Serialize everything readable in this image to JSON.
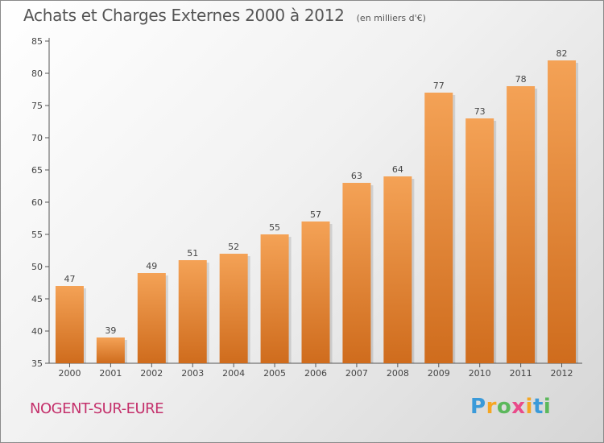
{
  "chart_data": {
    "type": "bar",
    "title": "Achats et Charges Externes 2000 à 2012",
    "subtitle": "(en milliers d'€)",
    "categories": [
      "2000",
      "2001",
      "2002",
      "2003",
      "2004",
      "2005",
      "2006",
      "2007",
      "2008",
      "2009",
      "2010",
      "2011",
      "2012"
    ],
    "values": [
      47,
      39,
      49,
      51,
      52,
      55,
      57,
      63,
      64,
      77,
      73,
      78,
      82
    ],
    "ylim": [
      35,
      85
    ],
    "yticks": [
      35,
      40,
      45,
      50,
      55,
      60,
      65,
      70,
      75,
      80,
      85
    ],
    "grid": false,
    "bar_color": "#f0913a",
    "bar_color_dark": "#cf6c1d"
  },
  "footer": {
    "city": "NOGENT-SUR-EURE",
    "logo_letters": [
      "P",
      "r",
      "o",
      "x",
      "i",
      "t",
      "i"
    ],
    "logo_colors": [
      "#3a9ad9",
      "#f5a623",
      "#5cb85c",
      "#e94b8a",
      "#f5a623",
      "#3a9ad9",
      "#5cb85c"
    ]
  }
}
